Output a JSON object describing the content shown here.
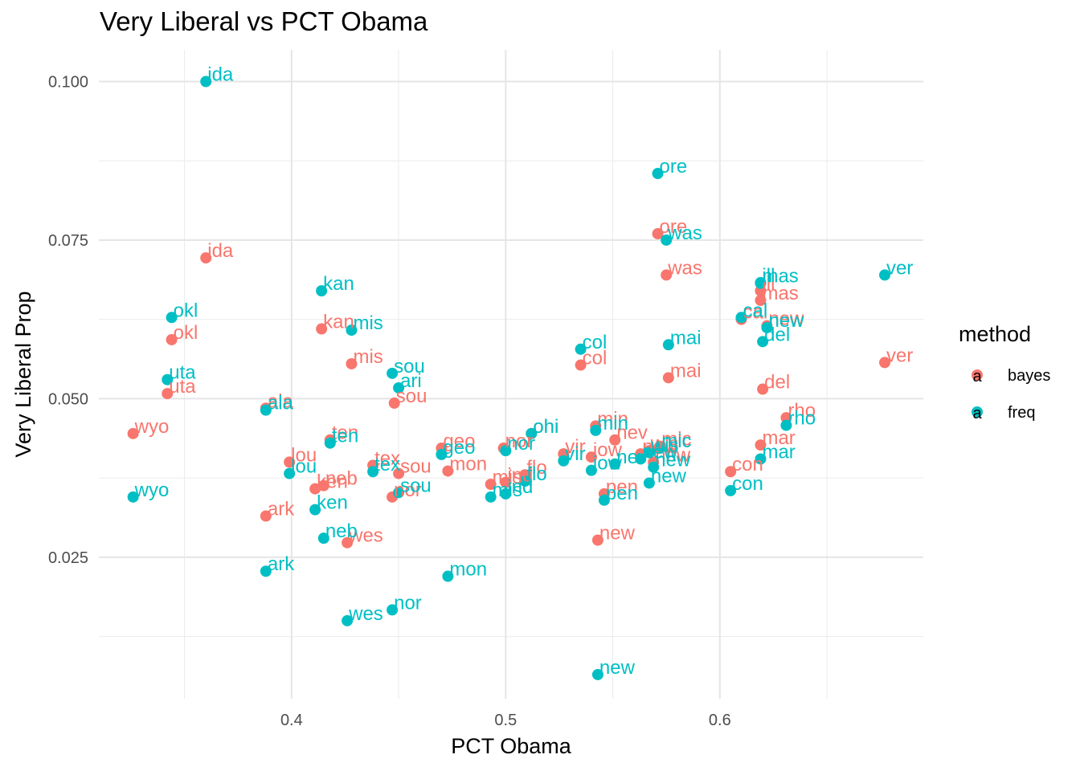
{
  "chart_data": {
    "type": "scatter",
    "title": "Very Liberal vs PCT Obama",
    "xlabel": "PCT Obama",
    "ylabel": "Very Liberal Prop",
    "xlim": [
      0.31,
      0.695
    ],
    "ylim": [
      0.0027,
      0.105
    ],
    "x_ticks": [
      0.4,
      0.5,
      0.6
    ],
    "x_tick_labels": [
      "0.4",
      "0.5",
      "0.6"
    ],
    "y_ticks": [
      0.025,
      0.05,
      0.075,
      0.1
    ],
    "y_tick_labels": [
      "0.025",
      "0.050",
      "0.075",
      "0.100"
    ],
    "grid": true,
    "legend": {
      "title": "method",
      "position": "right",
      "glyph": "a"
    },
    "series": [
      {
        "name": "bayes",
        "color": "#F8766D",
        "points": [
          {
            "label": "ida",
            "x": 0.36,
            "y": 0.0722
          },
          {
            "label": "okl",
            "x": 0.344,
            "y": 0.0593
          },
          {
            "label": "uta",
            "x": 0.342,
            "y": 0.0508
          },
          {
            "label": "wyo",
            "x": 0.326,
            "y": 0.0445
          },
          {
            "label": "ala",
            "x": 0.388,
            "y": 0.0485
          },
          {
            "label": "ark",
            "x": 0.388,
            "y": 0.0315
          },
          {
            "label": "kan",
            "x": 0.414,
            "y": 0.061
          },
          {
            "label": "mis",
            "x": 0.428,
            "y": 0.0555
          },
          {
            "label": "lou",
            "x": 0.399,
            "y": 0.04
          },
          {
            "label": "ken",
            "x": 0.411,
            "y": 0.0358
          },
          {
            "label": "neb",
            "x": 0.415,
            "y": 0.0363
          },
          {
            "label": "ten",
            "x": 0.418,
            "y": 0.0435
          },
          {
            "label": "wes",
            "x": 0.426,
            "y": 0.0273
          },
          {
            "label": "tex",
            "x": 0.438,
            "y": 0.0395
          },
          {
            "label": "sou",
            "x": 0.448,
            "y": 0.0493
          },
          {
            "label": "sou",
            "x": 0.45,
            "y": 0.0382
          },
          {
            "label": "nor",
            "x": 0.447,
            "y": 0.0345
          },
          {
            "label": "geo",
            "x": 0.47,
            "y": 0.0422
          },
          {
            "label": "mon",
            "x": 0.473,
            "y": 0.0386
          },
          {
            "label": "mis",
            "x": 0.493,
            "y": 0.0365
          },
          {
            "label": "ind",
            "x": 0.5,
            "y": 0.0368
          },
          {
            "label": "nor",
            "x": 0.499,
            "y": 0.0422
          },
          {
            "label": "flo",
            "x": 0.509,
            "y": 0.038
          },
          {
            "label": "ohi",
            "x": 0.512,
            "y": 0.0445
          },
          {
            "label": "vir",
            "x": 0.527,
            "y": 0.0413
          },
          {
            "label": "col",
            "x": 0.535,
            "y": 0.0553
          },
          {
            "label": "min",
            "x": 0.542,
            "y": 0.0457
          },
          {
            "label": "iow",
            "x": 0.54,
            "y": 0.0408
          },
          {
            "label": "nev",
            "x": 0.551,
            "y": 0.0435
          },
          {
            "label": "new",
            "x": 0.543,
            "y": 0.0277
          },
          {
            "label": "pen",
            "x": 0.546,
            "y": 0.035
          },
          {
            "label": "new",
            "x": 0.563,
            "y": 0.0413
          },
          {
            "label": "mic",
            "x": 0.572,
            "y": 0.0425
          },
          {
            "label": "wis",
            "x": 0.567,
            "y": 0.0418
          },
          {
            "label": "new",
            "x": 0.569,
            "y": 0.04
          },
          {
            "label": "ore",
            "x": 0.571,
            "y": 0.076
          },
          {
            "label": "was",
            "x": 0.575,
            "y": 0.0695
          },
          {
            "label": "mai",
            "x": 0.576,
            "y": 0.0533
          },
          {
            "label": "con",
            "x": 0.605,
            "y": 0.0385
          },
          {
            "label": "cal",
            "x": 0.61,
            "y": 0.0625
          },
          {
            "label": "ill",
            "x": 0.619,
            "y": 0.067
          },
          {
            "label": "mas",
            "x": 0.619,
            "y": 0.0655
          },
          {
            "label": "new",
            "x": 0.622,
            "y": 0.0615
          },
          {
            "label": "del",
            "x": 0.62,
            "y": 0.0515
          },
          {
            "label": "mar",
            "x": 0.619,
            "y": 0.0427
          },
          {
            "label": "rho",
            "x": 0.631,
            "y": 0.047
          },
          {
            "label": "ver",
            "x": 0.677,
            "y": 0.0557
          }
        ]
      },
      {
        "name": "freq",
        "color": "#00BFC4",
        "points": [
          {
            "label": "ida",
            "x": 0.36,
            "y": 0.1
          },
          {
            "label": "okl",
            "x": 0.344,
            "y": 0.0628
          },
          {
            "label": "uta",
            "x": 0.342,
            "y": 0.053
          },
          {
            "label": "wyo",
            "x": 0.326,
            "y": 0.0345
          },
          {
            "label": "ala",
            "x": 0.388,
            "y": 0.0482
          },
          {
            "label": "ark",
            "x": 0.388,
            "y": 0.0228
          },
          {
            "label": "kan",
            "x": 0.414,
            "y": 0.067
          },
          {
            "label": "mis",
            "x": 0.428,
            "y": 0.0608
          },
          {
            "label": "lou",
            "x": 0.399,
            "y": 0.0382
          },
          {
            "label": "ken",
            "x": 0.411,
            "y": 0.0325
          },
          {
            "label": "neb",
            "x": 0.415,
            "y": 0.028
          },
          {
            "label": "ten",
            "x": 0.418,
            "y": 0.043
          },
          {
            "label": "wes",
            "x": 0.426,
            "y": 0.015
          },
          {
            "label": "tex",
            "x": 0.438,
            "y": 0.0385
          },
          {
            "label": "sou",
            "x": 0.447,
            "y": 0.054
          },
          {
            "label": "ari",
            "x": 0.45,
            "y": 0.0517
          },
          {
            "label": "sou",
            "x": 0.45,
            "y": 0.0352
          },
          {
            "label": "nor",
            "x": 0.447,
            "y": 0.0167
          },
          {
            "label": "geo",
            "x": 0.47,
            "y": 0.0412
          },
          {
            "label": "mon",
            "x": 0.473,
            "y": 0.022
          },
          {
            "label": "mis",
            "x": 0.493,
            "y": 0.0345
          },
          {
            "label": "ind",
            "x": 0.5,
            "y": 0.035
          },
          {
            "label": "nor",
            "x": 0.5,
            "y": 0.0418
          },
          {
            "label": "flo",
            "x": 0.509,
            "y": 0.037
          },
          {
            "label": "ohi",
            "x": 0.512,
            "y": 0.0445
          },
          {
            "label": "vir",
            "x": 0.527,
            "y": 0.0402
          },
          {
            "label": "col",
            "x": 0.535,
            "y": 0.0578
          },
          {
            "label": "min",
            "x": 0.542,
            "y": 0.045
          },
          {
            "label": "iow",
            "x": 0.54,
            "y": 0.0387
          },
          {
            "label": "nev",
            "x": 0.551,
            "y": 0.0397
          },
          {
            "label": "new",
            "x": 0.543,
            "y": 0.0065
          },
          {
            "label": "pen",
            "x": 0.546,
            "y": 0.034
          },
          {
            "label": "new",
            "x": 0.563,
            "y": 0.0405
          },
          {
            "label": "mic",
            "x": 0.572,
            "y": 0.0422
          },
          {
            "label": "wis",
            "x": 0.567,
            "y": 0.0415
          },
          {
            "label": "new",
            "x": 0.569,
            "y": 0.0392
          },
          {
            "label": "new",
            "x": 0.567,
            "y": 0.0367
          },
          {
            "label": "ore",
            "x": 0.571,
            "y": 0.0855
          },
          {
            "label": "was",
            "x": 0.575,
            "y": 0.075
          },
          {
            "label": "mai",
            "x": 0.576,
            "y": 0.0585
          },
          {
            "label": "con",
            "x": 0.605,
            "y": 0.0355
          },
          {
            "label": "cal",
            "x": 0.61,
            "y": 0.0628
          },
          {
            "label": "ill",
            "x": 0.619,
            "y": 0.0683
          },
          {
            "label": "mas",
            "x": 0.619,
            "y": 0.0682
          },
          {
            "label": "new",
            "x": 0.622,
            "y": 0.0612
          },
          {
            "label": "del",
            "x": 0.62,
            "y": 0.059
          },
          {
            "label": "mar",
            "x": 0.619,
            "y": 0.0405
          },
          {
            "label": "rho",
            "x": 0.631,
            "y": 0.0458
          },
          {
            "label": "ver",
            "x": 0.677,
            "y": 0.0695
          }
        ]
      }
    ]
  }
}
